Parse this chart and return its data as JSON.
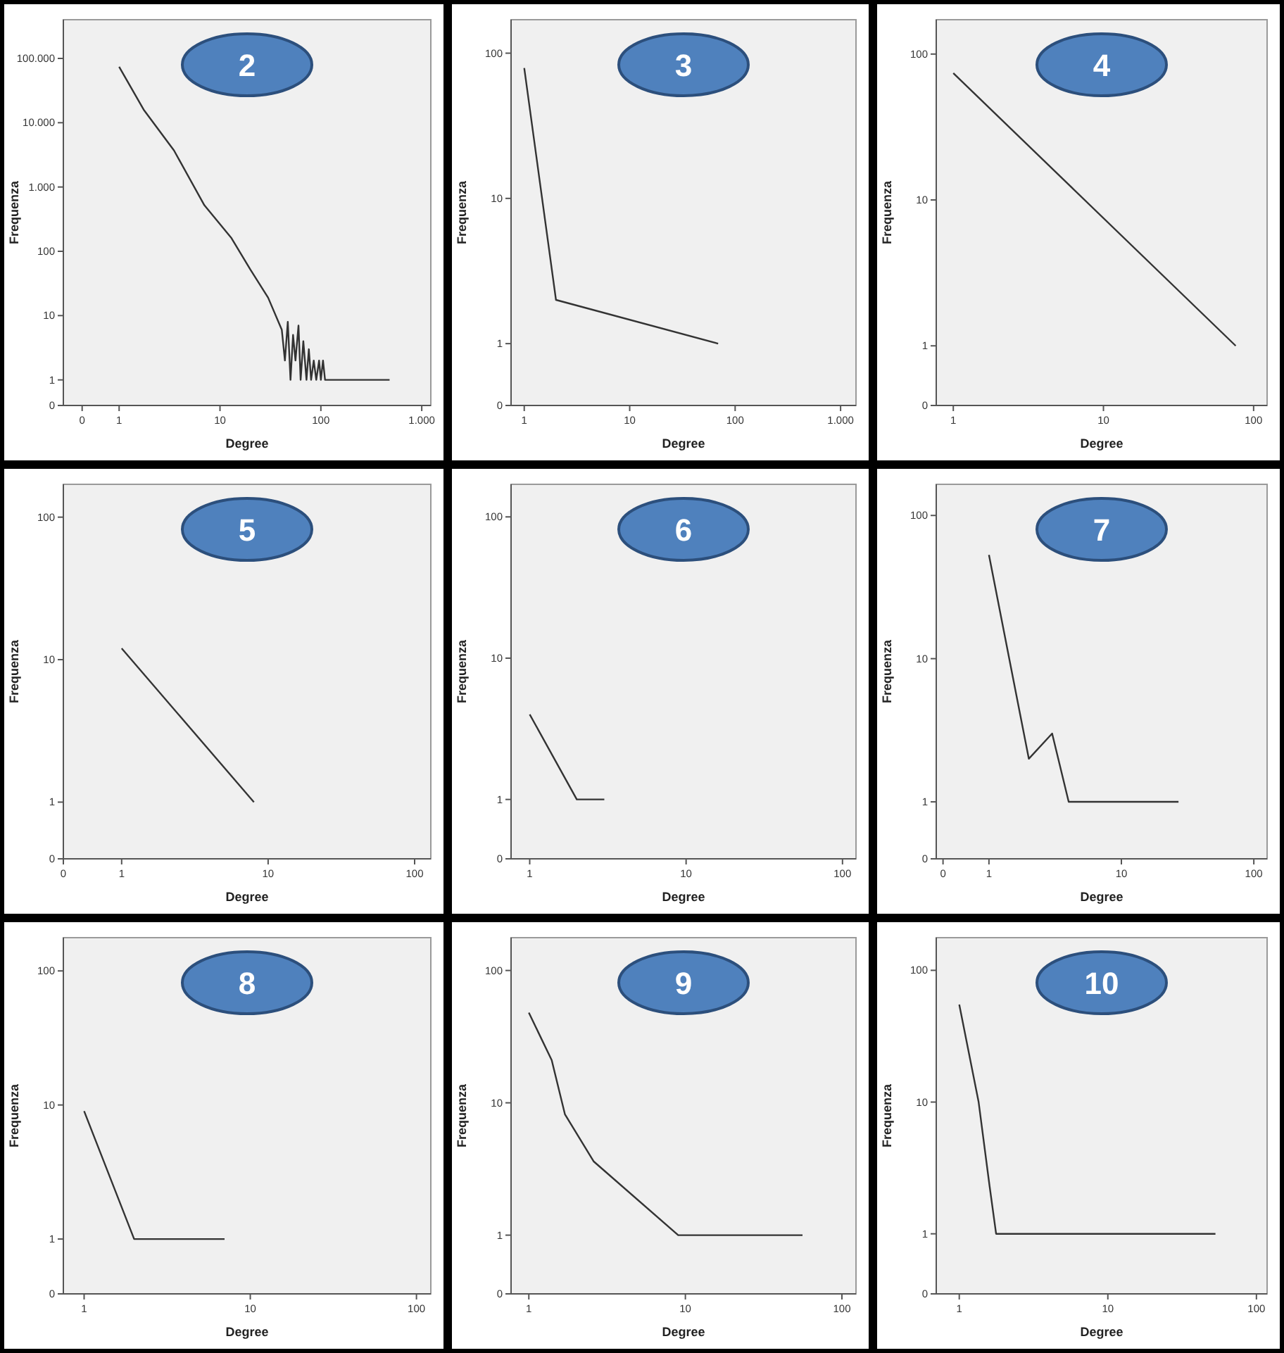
{
  "chart_data": [
    {
      "type": "line",
      "title": "2",
      "xlabel": "Degree",
      "ylabel": "Frequenza",
      "log": "xy",
      "color": "#333333",
      "xlim": [
        0.28,
        1230
      ],
      "ylim": [
        0.4,
        400000
      ],
      "xticks": [
        {
          "value": 0.43,
          "label": "0"
        },
        1,
        10,
        100,
        {
          "value": 1000,
          "label": "1.000"
        }
      ],
      "yticks": [
        {
          "value": 0.4,
          "label": "0"
        },
        1,
        10,
        100,
        {
          "value": 1000,
          "label": "1.000"
        },
        {
          "value": 10000,
          "label": "10.000"
        },
        {
          "value": 100000,
          "label": "100.000"
        }
      ],
      "x": [
        1,
        1.75,
        3.5,
        7,
        13,
        20,
        30,
        41,
        44,
        47,
        50,
        53,
        56,
        60,
        63,
        67,
        72,
        76,
        80,
        85,
        90,
        96,
        100,
        105,
        110,
        480
      ],
      "values": [
        74000,
        16000,
        3700,
        520,
        160,
        52,
        19,
        6,
        2,
        8,
        1,
        5,
        2,
        7,
        1,
        4,
        1,
        3,
        1,
        2,
        1,
        2,
        1,
        2,
        1,
        1
      ]
    },
    {
      "type": "line",
      "title": "3",
      "xlabel": "Degree",
      "ylabel": "Frequenza",
      "log": "xy",
      "color": "#333333",
      "xlim": [
        0.75,
        1400
      ],
      "ylim": [
        0.375,
        170
      ],
      "xticks": [
        1,
        10,
        100,
        {
          "value": 1000,
          "label": "1.000"
        }
      ],
      "yticks": [
        {
          "value": 0.375,
          "label": "0"
        },
        1,
        10,
        100
      ],
      "x": [
        1,
        2,
        69
      ],
      "values": [
        79,
        2,
        1
      ]
    },
    {
      "type": "line",
      "title": "4",
      "xlabel": "Degree",
      "ylabel": "Frequenza",
      "log": "xy",
      "color": "#333333",
      "xlim": [
        0.77,
        123
      ],
      "ylim": [
        0.39,
        172
      ],
      "xticks": [
        1,
        10,
        100
      ],
      "yticks": [
        {
          "value": 0.39,
          "label": "0"
        },
        1,
        10,
        100
      ],
      "x": [
        1,
        76
      ],
      "values": [
        74,
        1
      ]
    },
    {
      "type": "line",
      "title": "5",
      "xlabel": "Degree",
      "ylabel": "Frequenza",
      "log": "xy",
      "color": "#333333",
      "xlim": [
        0.4,
        129
      ],
      "ylim": [
        0.4,
        170
      ],
      "xticks": [
        {
          "value": 0.4,
          "label": "0"
        },
        1,
        10,
        100
      ],
      "yticks": [
        {
          "value": 0.4,
          "label": "0"
        },
        1,
        10,
        100
      ],
      "x": [
        1,
        8
      ],
      "values": [
        12,
        1
      ]
    },
    {
      "type": "line",
      "title": "6",
      "xlabel": "Degree",
      "ylabel": "Frequenza",
      "log": "xy",
      "color": "#333333",
      "xlim": [
        0.76,
        122
      ],
      "ylim": [
        0.38,
        170
      ],
      "xticks": [
        1,
        10,
        100
      ],
      "yticks": [
        {
          "value": 0.38,
          "label": "0"
        },
        1,
        10,
        100
      ],
      "x": [
        1,
        2,
        3
      ],
      "values": [
        4,
        1,
        1
      ]
    },
    {
      "type": "line",
      "title": "7",
      "xlabel": "Degree",
      "ylabel": "Frequenza",
      "log": "xy",
      "color": "#333333",
      "xlim": [
        0.4,
        126
      ],
      "ylim": [
        0.4,
        165
      ],
      "xticks": [
        {
          "value": 0.45,
          "label": "0"
        },
        1,
        10,
        100
      ],
      "yticks": [
        {
          "value": 0.4,
          "label": "0"
        },
        1,
        10,
        100
      ],
      "x": [
        1,
        2,
        3,
        4,
        27
      ],
      "values": [
        53,
        2,
        3,
        1,
        1
      ]
    },
    {
      "type": "line",
      "title": "8",
      "xlabel": "Degree",
      "ylabel": "Frequenza",
      "log": "xy",
      "color": "#333333",
      "xlim": [
        0.75,
        122
      ],
      "ylim": [
        0.39,
        177
      ],
      "xticks": [
        1,
        10,
        100
      ],
      "yticks": [
        {
          "value": 0.39,
          "label": "0"
        },
        1,
        10,
        100
      ],
      "x": [
        1,
        2,
        7
      ],
      "values": [
        9,
        1,
        1
      ]
    },
    {
      "type": "line",
      "title": "9",
      "xlabel": "Degree",
      "ylabel": "Frequenza",
      "log": "xy",
      "color": "#333333",
      "xlim": [
        0.77,
        123
      ],
      "ylim": [
        0.36,
        177
      ],
      "xticks": [
        1,
        10,
        100
      ],
      "yticks": [
        {
          "value": 0.36,
          "label": "0"
        },
        1,
        10,
        100
      ],
      "x": [
        1,
        1.4,
        1.7,
        2.6,
        9,
        56
      ],
      "values": [
        48,
        21,
        8.2,
        3.6,
        1,
        1
      ]
    },
    {
      "type": "line",
      "title": "10",
      "xlabel": "Degree",
      "ylabel": "Frequenza",
      "log": "xy",
      "color": "#333333",
      "xlim": [
        0.7,
        118
      ],
      "ylim": [
        0.35,
        177
      ],
      "xticks": [
        1,
        10,
        100
      ],
      "yticks": [
        {
          "value": 0.35,
          "label": "0"
        },
        1,
        10,
        100
      ],
      "x": [
        1,
        1.35,
        1.6,
        1.77,
        53
      ],
      "values": [
        55,
        10,
        2.3,
        1,
        1
      ]
    }
  ]
}
